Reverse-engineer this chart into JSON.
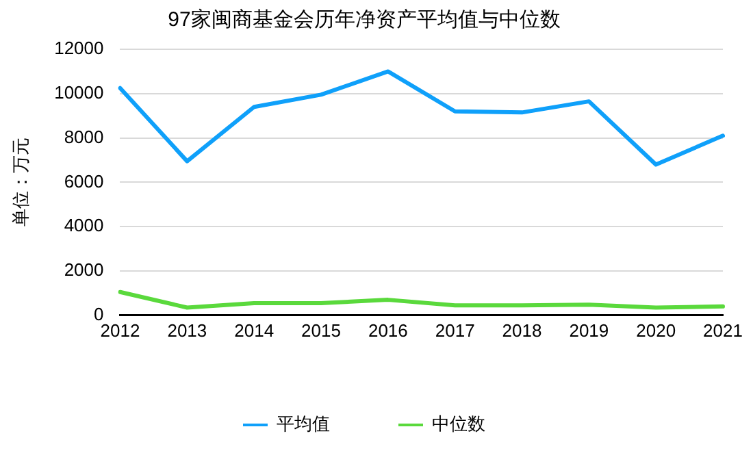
{
  "chart_data": {
    "type": "line",
    "title": "97家闽商基金会历年净资产平均值与中位数",
    "ylabel": "单位：万元",
    "categories": [
      "2012",
      "2013",
      "2014",
      "2015",
      "2016",
      "2017",
      "2018",
      "2019",
      "2020",
      "2021"
    ],
    "series": [
      {
        "name": "平均值",
        "color": "#0fa0fa",
        "values": [
          10250,
          6950,
          9400,
          9950,
          11000,
          9200,
          9150,
          9650,
          6800,
          8100
        ]
      },
      {
        "name": "中位数",
        "color": "#5ad93c",
        "values": [
          1050,
          350,
          550,
          550,
          700,
          450,
          450,
          480,
          350,
          400
        ]
      }
    ],
    "ylim": [
      0,
      12000
    ],
    "yticks": [
      0,
      2000,
      4000,
      6000,
      8000,
      10000,
      12000
    ],
    "grid": "y",
    "legend": "bottom",
    "marker": "none",
    "line_style": "solid"
  }
}
